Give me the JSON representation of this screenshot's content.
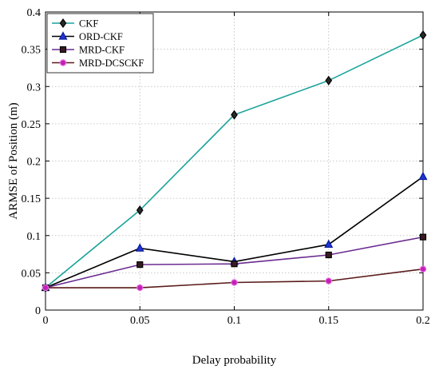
{
  "chart_data": {
    "type": "line",
    "title": "",
    "xlabel": "Delay probability",
    "ylabel": "ARMSE of Position (m)",
    "x": [
      0,
      0.05,
      0.1,
      0.15,
      0.2
    ],
    "xlim": [
      0,
      0.2
    ],
    "ylim": [
      0,
      0.4
    ],
    "xticks": [
      "0",
      "0.05",
      "0.1",
      "0.15",
      "0.2"
    ],
    "yticks": [
      "0",
      "0.05",
      "0.1",
      "0.15",
      "0.2",
      "0.25",
      "0.3",
      "0.35",
      "0.4"
    ],
    "grid": true,
    "legend_position": "top-left",
    "series": [
      {
        "name": "CKF",
        "color": "#1aa39a",
        "marker": "diamond",
        "marker_fill": "#2a2a2a",
        "marker_stroke": "#000000",
        "values": [
          0.03,
          0.134,
          0.262,
          0.308,
          0.369
        ]
      },
      {
        "name": "ORD-CKF",
        "color": "#000000",
        "marker": "triangle",
        "marker_fill": "#1f35d8",
        "marker_stroke": "#0a1a99",
        "values": [
          0.03,
          0.083,
          0.065,
          0.088,
          0.179
        ]
      },
      {
        "name": "MRD-CKF",
        "color": "#6b2c91",
        "marker": "square",
        "marker_fill": "#3a1a22",
        "marker_stroke": "#000000",
        "values": [
          0.03,
          0.061,
          0.062,
          0.074,
          0.098
        ]
      },
      {
        "name": "MRD-DCSCKF",
        "color": "#5a1a1a",
        "marker": "circle",
        "marker_fill": "#c21fb8",
        "marker_stroke": "#e86fe0",
        "values": [
          0.03,
          0.03,
          0.037,
          0.039,
          0.055
        ]
      }
    ]
  }
}
